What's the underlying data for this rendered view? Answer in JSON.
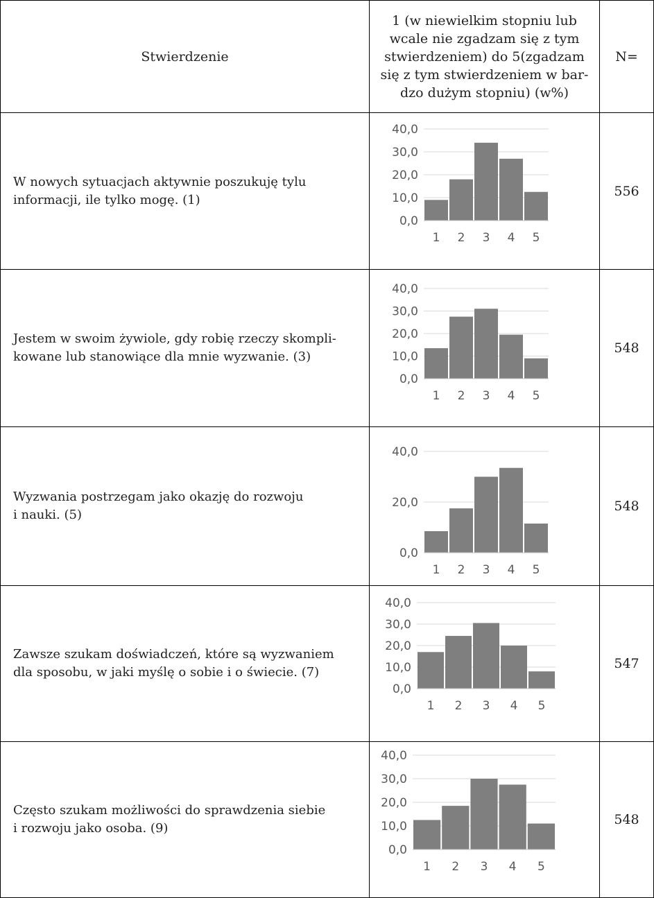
{
  "header": {
    "col_statement": "Stwierdzenie",
    "col_scale": "1 (w niewielkim stopniu lub\nwcale nie zgadzam się z tym\nstwierdzeniem) do 5(zgadzam\nsię z tym stwierdzeniem w bar-\ndzo dużym stopniu) (w%)",
    "col_n": "N="
  },
  "rows": [
    {
      "statement": "W nowych sytuacjach aktywnie poszukuję tylu\ninformacji, ile tylko mogę. (1)",
      "n": "556"
    },
    {
      "statement": "Jestem w swoim żywiole, gdy robię rzeczy skompli-\nkowane lub stanowiące dla mnie wyzwanie. (3)",
      "n": "548"
    },
    {
      "statement": "Wyzwania postrzegam jako okazję do rozwoju\ni nauki. (5)",
      "n": "548"
    },
    {
      "statement": "Zawsze szukam doświadczeń, które są wyzwaniem\ndla sposobu, w jaki myślę o sobie i o świecie. (7)",
      "n": "547"
    },
    {
      "statement": "Często szukam możliwości do sprawdzenia siebie\ni rozwoju jako osoba. (9)",
      "n": "548"
    }
  ],
  "chart_data": [
    {
      "type": "bar",
      "categories": [
        "1",
        "2",
        "3",
        "4",
        "5"
      ],
      "values": [
        9.0,
        18.0,
        34.0,
        27.0,
        12.5
      ],
      "ylim": [
        0,
        40
      ],
      "yticks": [
        "0,0",
        "10,0",
        "20,0",
        "30,0",
        "40,0"
      ],
      "grid": true,
      "bar_color": "#7f7f7f"
    },
    {
      "type": "bar",
      "categories": [
        "1",
        "2",
        "3",
        "4",
        "5"
      ],
      "values": [
        13.5,
        27.5,
        31.0,
        19.5,
        9.0
      ],
      "ylim": [
        0,
        40
      ],
      "yticks": [
        "0,0",
        "10,0",
        "20,0",
        "30,0",
        "40,0"
      ],
      "grid": true,
      "bar_color": "#7f7f7f"
    },
    {
      "type": "bar",
      "categories": [
        "1",
        "2",
        "3",
        "4",
        "5"
      ],
      "values": [
        8.5,
        17.5,
        30.0,
        33.5,
        11.5
      ],
      "ylim": [
        0,
        40
      ],
      "yticks": [
        "0,0",
        "20,0",
        "40,0"
      ],
      "grid": true,
      "bar_color": "#7f7f7f"
    },
    {
      "type": "bar",
      "categories": [
        "1",
        "2",
        "3",
        "4",
        "5"
      ],
      "values": [
        17.0,
        24.5,
        30.5,
        20.0,
        8.0
      ],
      "ylim": [
        0,
        40
      ],
      "yticks": [
        "0,0",
        "10,0",
        "20,0",
        "30,0",
        "40,0"
      ],
      "grid": true,
      "bar_color": "#7f7f7f"
    },
    {
      "type": "bar",
      "categories": [
        "1",
        "2",
        "3",
        "4",
        "5"
      ],
      "values": [
        12.5,
        18.5,
        30.0,
        27.5,
        11.0
      ],
      "ylim": [
        0,
        40
      ],
      "yticks": [
        "0,0",
        "10,0",
        "20,0",
        "30,0",
        "40,0"
      ],
      "grid": true,
      "bar_color": "#7f7f7f"
    }
  ]
}
